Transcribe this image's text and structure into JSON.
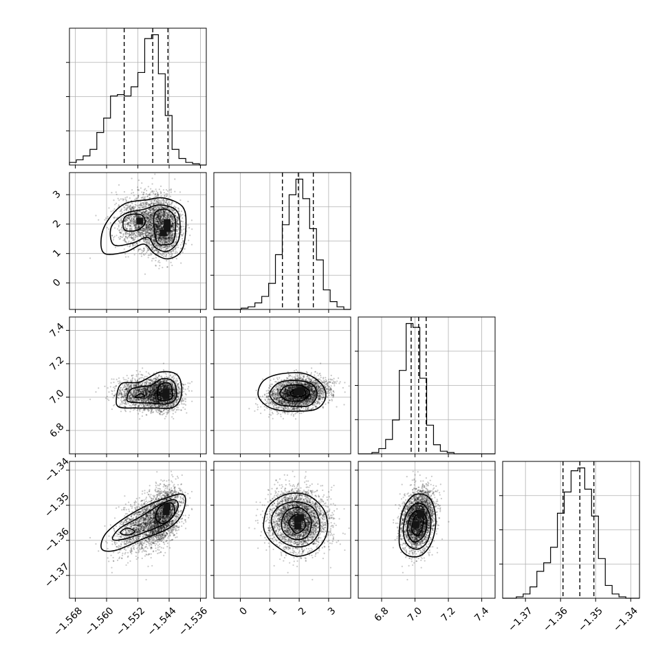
{
  "chart_data": {
    "type": "corner",
    "grid": true,
    "parameters": [
      {
        "index": 0,
        "range": [
          -1.5695,
          -1.5345
        ],
        "ticks": [
          -1.568,
          -1.56,
          -1.552,
          -1.544,
          -1.536
        ],
        "tick_labels": [
          "−1.568",
          "−1.560",
          "−1.552",
          "−1.544",
          "−1.536"
        ],
        "quantiles": [
          -1.5555,
          -1.5482,
          -1.5443
        ],
        "histogram": {
          "edges_start": -1.5695,
          "bin_width": 0.00175,
          "counts": [
            2,
            4,
            7,
            12,
            25,
            36,
            53,
            54,
            53,
            60,
            71,
            97,
            100,
            70,
            38,
            12,
            5,
            2,
            1,
            0
          ]
        },
        "modes": [
          {
            "value": -1.5505,
            "weight": 0.45,
            "sd": 0.0035
          },
          {
            "value": -1.5455,
            "weight": 0.55,
            "sd": 0.0022
          }
        ]
      },
      {
        "index": 1,
        "range": [
          -0.9,
          3.75
        ],
        "ticks": [
          0,
          1,
          2,
          3
        ],
        "tick_labels": [
          "0",
          "1",
          "2",
          "3"
        ],
        "quantiles": [
          1.43,
          1.97,
          2.48
        ],
        "histogram": {
          "edges_start": -0.9,
          "bin_width": 0.2325,
          "counts": [
            0,
            0,
            0,
            0,
            1,
            2,
            5,
            10,
            20,
            42,
            65,
            88,
            100,
            85,
            62,
            38,
            15,
            6,
            2,
            0
          ]
        }
      },
      {
        "index": 2,
        "range": [
          6.66,
          7.48
        ],
        "ticks": [
          6.8,
          7.0,
          7.2,
          7.4
        ],
        "tick_labels": [
          "6.8",
          "7.0",
          "7.2",
          "7.4"
        ],
        "quantiles": [
          6.977,
          7.022,
          7.067
        ],
        "histogram": {
          "edges_start": 6.66,
          "bin_width": 0.041,
          "counts": [
            0,
            0,
            1,
            4,
            11,
            26,
            64,
            100,
            97,
            58,
            22,
            7,
            2,
            1,
            0,
            0,
            0,
            0,
            0,
            0
          ]
        }
      },
      {
        "index": 3,
        "range": [
          -1.3765,
          -1.3375
        ],
        "ticks": [
          -1.37,
          -1.36,
          -1.35,
          -1.34
        ],
        "tick_labels": [
          "−1.37",
          "−1.36",
          "−1.35",
          "−1.34"
        ],
        "quantiles": [
          -1.3593,
          -1.3545,
          -1.3505
        ],
        "histogram": {
          "edges_start": -1.3765,
          "bin_width": 0.00195,
          "counts": [
            0,
            0,
            1,
            3,
            8,
            19,
            25,
            36,
            60,
            75,
            90,
            92,
            77,
            58,
            28,
            9,
            3,
            1,
            0,
            0
          ]
        }
      }
    ],
    "scatter_samples": 3500,
    "contours": [
      {
        "row": 1,
        "col": 0,
        "levels": [
          [
            [
              -1.5605,
              1.0
            ],
            [
              -1.5614,
              1.5
            ],
            [
              -1.5598,
              2.1
            ],
            [
              -1.5555,
              2.68
            ],
            [
              -1.5495,
              2.83
            ],
            [
              -1.5452,
              2.88
            ],
            [
              -1.5405,
              2.58
            ],
            [
              -1.5397,
              1.9
            ],
            [
              -1.5408,
              1.1
            ],
            [
              -1.5443,
              0.82
            ],
            [
              -1.5478,
              1.0
            ],
            [
              -1.5505,
              1.32
            ],
            [
              -1.5552,
              1.05
            ]
          ],
          [
            [
              -1.5582,
              1.3
            ],
            [
              -1.5588,
              1.9
            ],
            [
              -1.5553,
              2.35
            ],
            [
              -1.5505,
              2.5
            ],
            [
              -1.5462,
              2.65
            ],
            [
              -1.5418,
              2.4
            ],
            [
              -1.5415,
              1.5
            ],
            [
              -1.5443,
              1.08
            ],
            [
              -1.5475,
              1.2
            ],
            [
              -1.5495,
              1.55
            ],
            [
              -1.5535,
              1.35
            ]
          ],
          [
            [
              -1.5555,
              1.82
            ],
            [
              -1.5552,
              2.26
            ],
            [
              -1.5512,
              2.32
            ],
            [
              -1.5502,
              2.02
            ],
            [
              -1.5525,
              1.78
            ]
          ],
          [
            [
              -1.5472,
              1.42
            ],
            [
              -1.5478,
              2.32
            ],
            [
              -1.5448,
              2.5
            ],
            [
              -1.5425,
              2.2
            ],
            [
              -1.5428,
              1.45
            ],
            [
              -1.5448,
              1.3
            ]
          ]
        ],
        "dark_cells": [
          [
            -1.5445,
            1.85
          ],
          [
            -1.5445,
            2.05
          ],
          [
            -1.5455,
            1.7
          ],
          [
            -1.5515,
            2.1
          ]
        ]
      },
      {
        "row": 2,
        "col": 0,
        "levels": [
          [
            [
              -1.5575,
              6.99
            ],
            [
              -1.5562,
              7.08
            ],
            [
              -1.5515,
              7.09
            ],
            [
              -1.5462,
              7.15
            ],
            [
              -1.5418,
              7.13
            ],
            [
              -1.5408,
              7.02
            ],
            [
              -1.5428,
              6.94
            ],
            [
              -1.5482,
              6.935
            ],
            [
              -1.5525,
              6.935
            ],
            [
              -1.5568,
              6.94
            ]
          ],
          [
            [
              -1.5548,
              6.99
            ],
            [
              -1.5535,
              7.05
            ],
            [
              -1.5488,
              7.07
            ],
            [
              -1.5458,
              7.11
            ],
            [
              -1.5428,
              7.09
            ],
            [
              -1.5422,
              7.0
            ],
            [
              -1.5445,
              6.96
            ],
            [
              -1.5495,
              6.965
            ],
            [
              -1.5538,
              6.97
            ]
          ],
          [
            [
              -1.5468,
              6.99
            ],
            [
              -1.5465,
              7.07
            ],
            [
              -1.5438,
              7.08
            ],
            [
              -1.5432,
              7.0
            ],
            [
              -1.5448,
              6.98
            ]
          ],
          [
            [
              -1.5528,
              7.0
            ],
            [
              -1.5512,
              7.02
            ],
            [
              -1.5503,
              7.005
            ],
            [
              -1.5518,
              6.998
            ]
          ]
        ],
        "dark_cells": [
          [
            -1.5448,
            7.03
          ],
          [
            -1.5448,
            7.01
          ]
        ]
      },
      {
        "row": 2,
        "col": 1,
        "levels": [
          [
            [
              0.6,
              7.02
            ],
            [
              0.8,
              7.1
            ],
            [
              1.4,
              7.14
            ],
            [
              2.2,
              7.14
            ],
            [
              2.75,
              7.08
            ],
            [
              2.9,
              7.0
            ],
            [
              2.6,
              6.93
            ],
            [
              1.9,
              6.915
            ],
            [
              1.2,
              6.925
            ],
            [
              0.8,
              6.96
            ]
          ],
          [
            [
              1.0,
              7.02
            ],
            [
              1.3,
              7.085
            ],
            [
              1.9,
              7.1
            ],
            [
              2.45,
              7.075
            ],
            [
              2.6,
              7.01
            ],
            [
              2.35,
              6.95
            ],
            [
              1.8,
              6.945
            ],
            [
              1.25,
              6.96
            ]
          ],
          [
            [
              1.35,
              7.02
            ],
            [
              1.55,
              7.065
            ],
            [
              2.05,
              7.07
            ],
            [
              2.35,
              7.03
            ],
            [
              2.1,
              6.98
            ],
            [
              1.6,
              6.98
            ]
          ],
          [
            [
              1.7,
              7.02
            ],
            [
              1.85,
              7.045
            ],
            [
              2.15,
              7.045
            ],
            [
              2.2,
              7.015
            ],
            [
              1.9,
              7.0
            ]
          ]
        ],
        "dark_cells": [
          [
            2.05,
            7.04
          ],
          [
            1.95,
            7.03
          ]
        ]
      },
      {
        "row": 3,
        "col": 0,
        "levels": [
          [
            [
              -1.5612,
              -1.3625
            ],
            [
              -1.5605,
              -1.3585
            ],
            [
              -1.5565,
              -1.3545
            ],
            [
              -1.5505,
              -1.3505
            ],
            [
              -1.5445,
              -1.3478
            ],
            [
              -1.5408,
              -1.3468
            ],
            [
              -1.5398,
              -1.3488
            ],
            [
              -1.5412,
              -1.3535
            ],
            [
              -1.5445,
              -1.3568
            ],
            [
              -1.5505,
              -1.3595
            ],
            [
              -1.5575,
              -1.3628
            ]
          ],
          [
            [
              -1.5585,
              -1.3595
            ],
            [
              -1.5565,
              -1.3565
            ],
            [
              -1.5512,
              -1.3532
            ],
            [
              -1.5458,
              -1.3495
            ],
            [
              -1.5425,
              -1.3485
            ],
            [
              -1.5418,
              -1.3508
            ],
            [
              -1.5445,
              -1.3548
            ],
            [
              -1.5505,
              -1.3578
            ],
            [
              -1.5562,
              -1.3598
            ]
          ],
          [
            [
              -1.5475,
              -1.3535
            ],
            [
              -1.5462,
              -1.3502
            ],
            [
              -1.5432,
              -1.3495
            ],
            [
              -1.5428,
              -1.3528
            ],
            [
              -1.5455,
              -1.3552
            ]
          ],
          [
            [
              -1.5565,
              -1.3578
            ],
            [
              -1.5548,
              -1.3565
            ],
            [
              -1.5528,
              -1.3575
            ],
            [
              -1.5548,
              -1.3585
            ]
          ]
        ],
        "dark_cells": [
          [
            -1.5448,
            -1.3518
          ],
          [
            -1.5445,
            -1.3505
          ]
        ]
      },
      {
        "row": 3,
        "col": 1,
        "levels": [
          [
            [
              0.8,
              -1.3545
            ],
            [
              1.0,
              -1.3498
            ],
            [
              1.6,
              -1.3468
            ],
            [
              2.3,
              -1.3472
            ],
            [
              2.85,
              -1.3515
            ],
            [
              2.95,
              -1.3575
            ],
            [
              2.6,
              -1.3625
            ],
            [
              1.9,
              -1.3645
            ],
            [
              1.2,
              -1.3615
            ],
            [
              0.85,
              -1.358
            ]
          ],
          [
            [
              1.05,
              -1.3545
            ],
            [
              1.3,
              -1.3505
            ],
            [
              1.9,
              -1.349
            ],
            [
              2.5,
              -1.351
            ],
            [
              2.7,
              -1.3565
            ],
            [
              2.4,
              -1.3608
            ],
            [
              1.85,
              -1.3618
            ],
            [
              1.3,
              -1.3595
            ]
          ],
          [
            [
              1.4,
              -1.3548
            ],
            [
              1.6,
              -1.3515
            ],
            [
              2.05,
              -1.3508
            ],
            [
              2.4,
              -1.354
            ],
            [
              2.3,
              -1.3585
            ],
            [
              1.9,
              -1.3598
            ],
            [
              1.5,
              -1.358
            ]
          ],
          [
            [
              1.65,
              -1.355
            ],
            [
              1.85,
              -1.3528
            ],
            [
              2.1,
              -1.3532
            ],
            [
              2.2,
              -1.3562
            ],
            [
              1.9,
              -1.358
            ]
          ]
        ],
        "dark_cells": [
          [
            1.95,
            -1.354
          ],
          [
            1.95,
            -1.356
          ],
          [
            2.05,
            -1.3535
          ]
        ]
      },
      {
        "row": 3,
        "col": 2,
        "levels": [
          [
            [
              6.905,
              -1.359
            ],
            [
              6.92,
              -1.3525
            ],
            [
              6.975,
              -1.3478
            ],
            [
              7.04,
              -1.3468
            ],
            [
              7.1,
              -1.3488
            ],
            [
              7.125,
              -1.3545
            ],
            [
              7.1,
              -1.3605
            ],
            [
              7.04,
              -1.3642
            ],
            [
              6.965,
              -1.3645
            ],
            [
              6.915,
              -1.3625
            ]
          ],
          [
            [
              6.93,
              -1.3575
            ],
            [
              6.95,
              -1.3525
            ],
            [
              7.005,
              -1.3495
            ],
            [
              7.065,
              -1.3505
            ],
            [
              7.095,
              -1.3548
            ],
            [
              7.075,
              -1.3602
            ],
            [
              7.015,
              -1.3625
            ],
            [
              6.955,
              -1.3612
            ]
          ],
          [
            [
              6.955,
              -1.3565
            ],
            [
              6.975,
              -1.353
            ],
            [
              7.025,
              -1.3515
            ],
            [
              7.07,
              -1.354
            ],
            [
              7.055,
              -1.3585
            ],
            [
              7.0,
              -1.3605
            ],
            [
              6.965,
              -1.359
            ]
          ],
          [
            [
              6.98,
              -1.3565
            ],
            [
              7.0,
              -1.3532
            ],
            [
              7.04,
              -1.3528
            ],
            [
              7.05,
              -1.3555
            ],
            [
              7.02,
              -1.3585
            ],
            [
              6.99,
              -1.358
            ]
          ]
        ],
        "dark_cells": [
          [
            7.035,
            -1.3525
          ],
          [
            7.005,
            -1.3555
          ]
        ]
      }
    ]
  }
}
